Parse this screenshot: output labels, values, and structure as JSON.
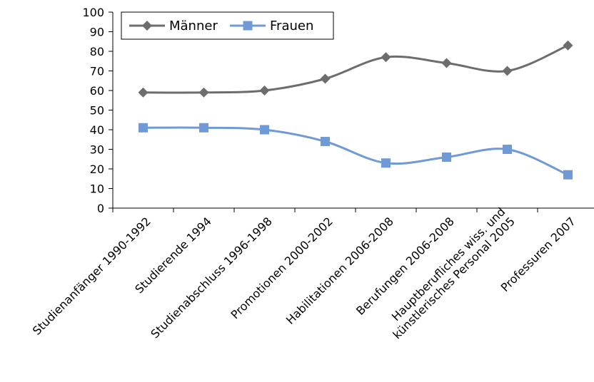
{
  "chart_data": {
    "type": "line",
    "title": "",
    "xlabel": "",
    "ylabel": "",
    "ylim": [
      0,
      100
    ],
    "yticks": [
      0,
      10,
      20,
      30,
      40,
      50,
      60,
      70,
      80,
      90,
      100
    ],
    "grid": false,
    "smooth": true,
    "legend_position": "top-left",
    "categories": [
      "Studienanfänger 1990-1992",
      "Studierende 1994",
      "Studienabschluss 1996-1998",
      "Promotionen 2000-2002",
      "Habilitationen 2006-2008",
      "Berufungen 2006-2008",
      "Hauptberufliches wiss. und\nkünstlerisches Personal 2005",
      "Professuren 2007"
    ],
    "series": [
      {
        "name": "Männer",
        "color": "#6d6d6d",
        "marker": "diamond",
        "values": [
          59,
          59,
          60,
          66,
          77,
          74,
          70,
          83
        ]
      },
      {
        "name": "Frauen",
        "color": "#6f9ad6",
        "marker": "square",
        "values": [
          41,
          41,
          40,
          34,
          23,
          26,
          30,
          17
        ]
      }
    ]
  }
}
